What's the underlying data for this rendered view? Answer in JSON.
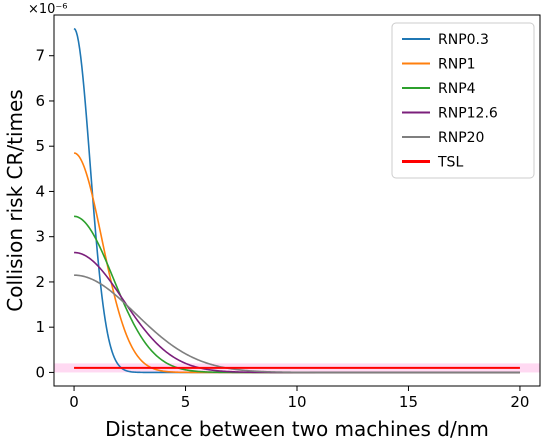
{
  "chart_data": {
    "type": "line",
    "xlabel": "Distance between two machines d/nm",
    "ylabel": "Collision risk CR/times",
    "y_exponent_label": "×10⁻⁶",
    "xlim": [
      -0.9,
      20.9
    ],
    "ylim": [
      -0.3,
      7.9
    ],
    "xticks": [
      0,
      5,
      10,
      15,
      20
    ],
    "xtick_labels": [
      "0",
      "5",
      "10",
      "15",
      "20"
    ],
    "yticks": [
      0,
      1,
      2,
      3,
      4,
      5,
      6,
      7
    ],
    "ytick_labels": [
      "0",
      "1",
      "2",
      "3",
      "4",
      "5",
      "6",
      "7"
    ],
    "grid": false,
    "legend_position": "top-right",
    "series": [
      {
        "name": "RNP0.3",
        "color": "#1f77b4",
        "kind": "curve",
        "peak": 7.6,
        "sigma": 0.72
      },
      {
        "name": "RNP1",
        "color": "#ff7f0e",
        "kind": "curve",
        "peak": 4.85,
        "sigma": 1.25
      },
      {
        "name": "RNP4",
        "color": "#2ca02c",
        "kind": "curve",
        "peak": 3.45,
        "sigma": 1.75
      },
      {
        "name": "RNP12.6",
        "color": "#7b1f7b",
        "kind": "curve",
        "peak": 2.65,
        "sigma": 2.2
      },
      {
        "name": "RNP20",
        "color": "#7f7f7f",
        "kind": "curve",
        "peak": 2.15,
        "sigma": 2.75
      },
      {
        "name": "TSL",
        "color": "#ff0000",
        "kind": "constant",
        "value": 0.1
      }
    ],
    "x_range": [
      0,
      20
    ]
  }
}
